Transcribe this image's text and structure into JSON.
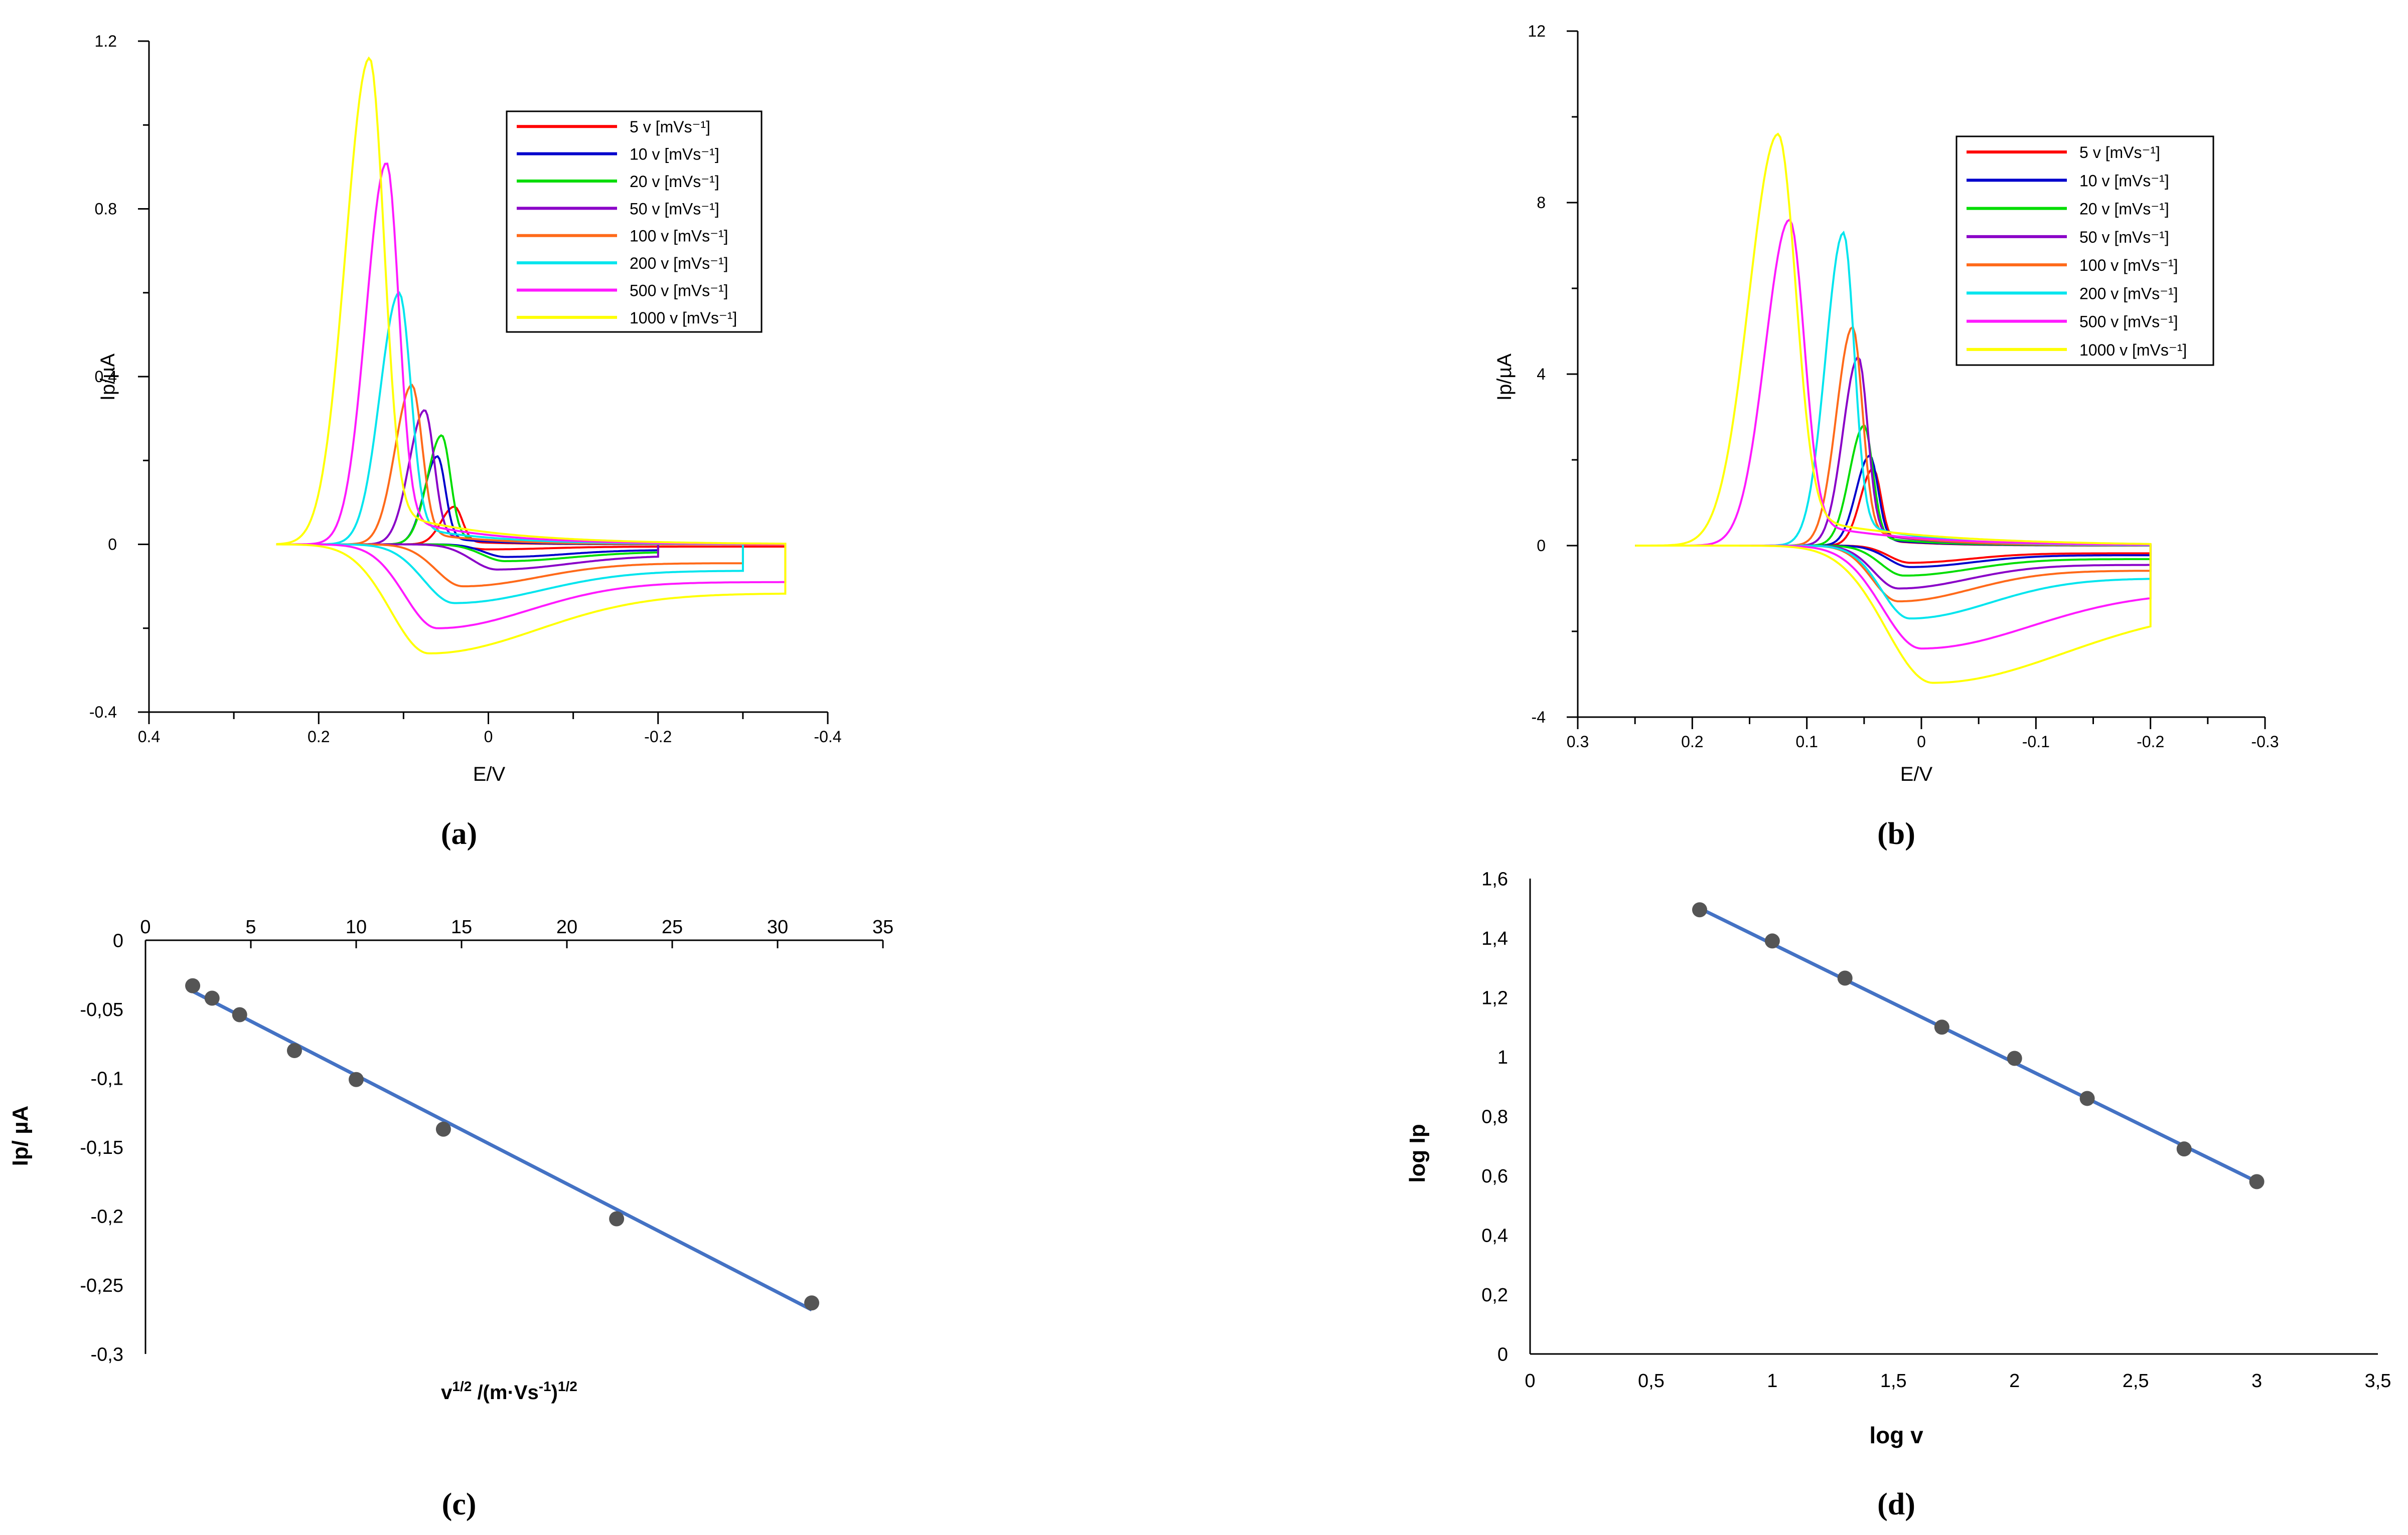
{
  "colors": {
    "s5": "#ff0000",
    "s10": "#0000cc",
    "s20": "#00dd00",
    "s50": "#8a00c8",
    "s100": "#ff6a1a",
    "s200": "#00e5ee",
    "s500": "#ff1aff",
    "s1000": "#ffff00",
    "fit": "#4472c4",
    "marker": "#555555"
  },
  "chart_data": [
    {
      "id": "a",
      "type": "line",
      "panel_label": "(a)",
      "xlabel": "E/V",
      "ylabel": "Ip/µA",
      "xlim": [
        0.4,
        -0.4
      ],
      "ylim": [
        -0.4,
        1.2
      ],
      "x_ticks": [
        0.4,
        0.2,
        0,
        -0.2,
        -0.4
      ],
      "x_tick_labels": [
        "0.4",
        "0.2",
        "0",
        "-0.2",
        "-0.4"
      ],
      "y_ticks": [
        -0.4,
        0,
        0.4,
        0.8,
        1.2
      ],
      "y_tick_labels": [
        "-0.4",
        "0",
        "0.4",
        "0.8",
        "1.2"
      ],
      "legend_position": "top-right",
      "x_start": 0.25,
      "series": [
        {
          "name": "5 v [mVs⁻¹]",
          "color_key": "s5",
          "peak_E": 0.04,
          "peak_I": 0.09,
          "width": 0.022,
          "red_E": 0.0,
          "red_I": -0.012,
          "x_end": -0.35
        },
        {
          "name": "10 v [mVs⁻¹]",
          "color_key": "s10",
          "peak_E": 0.06,
          "peak_I": 0.21,
          "width": 0.022,
          "red_E": -0.02,
          "red_I": -0.03,
          "x_end": -0.2
        },
        {
          "name": "20 v [mVs⁻¹]",
          "color_key": "s20",
          "peak_E": 0.055,
          "peak_I": 0.26,
          "width": 0.024,
          "red_E": -0.02,
          "red_I": -0.04,
          "x_end": -0.2
        },
        {
          "name": "50 v [mVs⁻¹]",
          "color_key": "s50",
          "peak_E": 0.075,
          "peak_I": 0.32,
          "width": 0.026,
          "red_E": -0.01,
          "red_I": -0.06,
          "x_end": -0.2
        },
        {
          "name": "100 v [mVs⁻¹]",
          "color_key": "s100",
          "peak_E": 0.09,
          "peak_I": 0.38,
          "width": 0.028,
          "red_E": 0.03,
          "red_I": -0.1,
          "x_end": -0.3
        },
        {
          "name": "200 v [mVs⁻¹]",
          "color_key": "s200",
          "peak_E": 0.105,
          "peak_I": 0.6,
          "width": 0.032,
          "red_E": 0.04,
          "red_I": -0.14,
          "x_end": -0.3
        },
        {
          "name": "500 v [mVs⁻¹]",
          "color_key": "s500",
          "peak_E": 0.12,
          "peak_I": 0.91,
          "width": 0.034,
          "red_E": 0.06,
          "red_I": -0.2,
          "x_end": -0.35
        },
        {
          "name": "1000 v [mVs⁻¹]",
          "color_key": "s1000",
          "peak_E": 0.14,
          "peak_I": 1.16,
          "width": 0.04,
          "red_E": 0.07,
          "red_I": -0.26,
          "x_end": -0.35
        }
      ]
    },
    {
      "id": "b",
      "type": "line",
      "panel_label": "(b)",
      "xlabel": "E/V",
      "ylabel": "Ip/µA",
      "xlim": [
        0.3,
        -0.3
      ],
      "ylim": [
        -4,
        12
      ],
      "x_ticks": [
        0.3,
        0.2,
        0.1,
        0,
        -0.1,
        -0.2,
        -0.3
      ],
      "x_tick_labels": [
        "0.3",
        "0.2",
        "0.1",
        "0",
        "-0.1",
        "-0.2",
        "-0.3"
      ],
      "y_ticks": [
        -4,
        0,
        4,
        8,
        12
      ],
      "y_tick_labels": [
        "-4",
        "0",
        "4",
        "8",
        "12"
      ],
      "legend_position": "top-right",
      "x_start": 0.25,
      "series": [
        {
          "name": "5 v [mVs⁻¹]",
          "color_key": "s5",
          "peak_E": 0.042,
          "peak_I": 1.8,
          "width": 0.016,
          "red_E": 0.01,
          "red_I": -0.4,
          "x_end": -0.2
        },
        {
          "name": "10 v [mVs⁻¹]",
          "color_key": "s10",
          "peak_E": 0.045,
          "peak_I": 2.1,
          "width": 0.017,
          "red_E": 0.01,
          "red_I": -0.5,
          "x_end": -0.2
        },
        {
          "name": "20 v [mVs⁻¹]",
          "color_key": "s20",
          "peak_E": 0.05,
          "peak_I": 2.8,
          "width": 0.018,
          "red_E": 0.015,
          "red_I": -0.7,
          "x_end": -0.2
        },
        {
          "name": "50 v [mVs⁻¹]",
          "color_key": "s50",
          "peak_E": 0.055,
          "peak_I": 4.4,
          "width": 0.019,
          "red_E": 0.02,
          "red_I": -1.0,
          "x_end": -0.2
        },
        {
          "name": "100 v [mVs⁻¹]",
          "color_key": "s100",
          "peak_E": 0.06,
          "peak_I": 5.1,
          "width": 0.02,
          "red_E": 0.02,
          "red_I": -1.3,
          "x_end": -0.2
        },
        {
          "name": "200 v [mVs⁻¹]",
          "color_key": "s200",
          "peak_E": 0.068,
          "peak_I": 7.3,
          "width": 0.022,
          "red_E": 0.01,
          "red_I": -1.7,
          "x_end": -0.2
        },
        {
          "name": "500 v [mVs⁻¹]",
          "color_key": "s500",
          "peak_E": 0.115,
          "peak_I": 7.6,
          "width": 0.03,
          "red_E": 0.0,
          "red_I": -2.4,
          "x_end": -0.2
        },
        {
          "name": "1000 v [mVs⁻¹]",
          "color_key": "s1000",
          "peak_E": 0.125,
          "peak_I": 9.6,
          "width": 0.036,
          "red_E": -0.01,
          "red_I": -3.2,
          "x_end": -0.2
        }
      ]
    },
    {
      "id": "c",
      "type": "scatter",
      "panel_label": "(c)",
      "xlabel_main": "v",
      "xlabel_sup1": "1/2",
      "xlabel_mid": " /(m·Vs",
      "xlabel_sup2": "-1",
      "xlabel_end": ")",
      "xlabel_sup3": "1/2",
      "ylabel": "Ip/ µA",
      "xlim": [
        0,
        35
      ],
      "ylim": [
        -0.3,
        0
      ],
      "x_ticks": [
        0,
        5,
        10,
        15,
        20,
        25,
        30,
        35
      ],
      "x_tick_labels": [
        "0",
        "5",
        "10",
        "15",
        "20",
        "25",
        "30",
        "35"
      ],
      "y_ticks": [
        0,
        -0.05,
        -0.1,
        -0.15,
        -0.2,
        -0.25,
        -0.3
      ],
      "y_tick_labels": [
        "0",
        "-0,05",
        "-0,1",
        "-0,15",
        "-0,2",
        "-0,25",
        "-0,3"
      ],
      "points": {
        "x": [
          2.24,
          3.16,
          4.47,
          7.07,
          10.0,
          14.14,
          22.36,
          31.62
        ],
        "y": [
          -0.033,
          -0.042,
          -0.054,
          -0.08,
          -0.101,
          -0.137,
          -0.202,
          -0.263
        ]
      },
      "fit": {
        "x": [
          2.24,
          31.62
        ],
        "y": [
          -0.037,
          -0.268
        ]
      }
    },
    {
      "id": "d",
      "type": "scatter",
      "panel_label": "(d)",
      "xlabel": "log v",
      "ylabel": "log Ip",
      "xlim": [
        0,
        3.5
      ],
      "ylim": [
        0,
        1.6
      ],
      "x_ticks": [
        0,
        0.5,
        1,
        1.5,
        2,
        2.5,
        3,
        3.5
      ],
      "x_tick_labels": [
        "0",
        "0,5",
        "1",
        "1,5",
        "2",
        "2,5",
        "3",
        "3,5"
      ],
      "y_ticks": [
        0,
        0.2,
        0.4,
        0.6,
        0.8,
        1,
        1.2,
        1.4,
        1.6
      ],
      "y_tick_labels": [
        "0",
        "0,2",
        "0,4",
        "0,6",
        "0,8",
        "1",
        "1,2",
        "1,4",
        "1,6"
      ],
      "points": {
        "x": [
          0.7,
          1.0,
          1.3,
          1.7,
          2.0,
          2.3,
          2.7,
          3.0
        ],
        "y": [
          1.495,
          1.39,
          1.265,
          1.1,
          0.995,
          0.86,
          0.69,
          0.58
        ]
      },
      "fit": {
        "x": [
          0.7,
          3.0
        ],
        "y": [
          1.5,
          0.58
        ]
      }
    }
  ]
}
